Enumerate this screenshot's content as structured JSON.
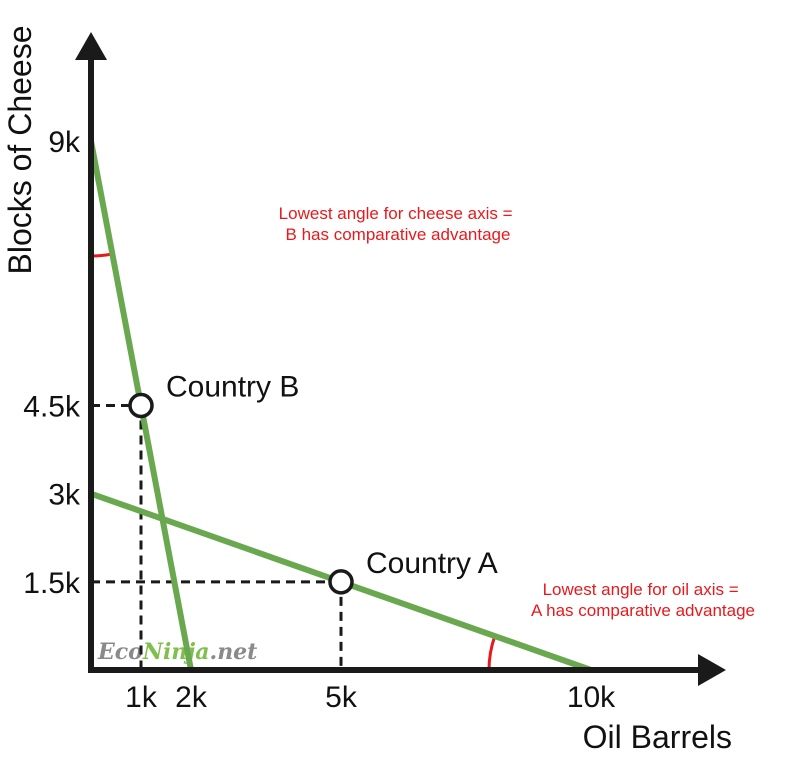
{
  "chart_data": {
    "type": "line",
    "xlabel": "Oil Barrels",
    "ylabel": "Blocks of Cheese",
    "xlim": [
      0,
      10500
    ],
    "ylim": [
      0,
      10000
    ],
    "x_ticks": [
      {
        "value": 1000,
        "label": "1k"
      },
      {
        "value": 2000,
        "label": "2k"
      },
      {
        "value": 5000,
        "label": "5k"
      },
      {
        "value": 10000,
        "label": "10k"
      }
    ],
    "y_ticks": [
      {
        "value": 9000,
        "label": "9k"
      },
      {
        "value": 4500,
        "label": "4.5k"
      },
      {
        "value": 3000,
        "label": "3k"
      },
      {
        "value": 1500,
        "label": "1.5k"
      }
    ],
    "series": [
      {
        "x": [
          0,
          2000
        ],
        "y": [
          9000,
          0
        ],
        "color": "#6aa84f"
      },
      {
        "x": [
          0,
          10000
        ],
        "y": [
          3000,
          0
        ],
        "color": "#6aa84f"
      }
    ],
    "points": [
      {
        "label": "Country B",
        "x": 1000,
        "y": 4500
      },
      {
        "label": "Country A",
        "x": 5000,
        "y": 1500
      }
    ],
    "annotations": [
      {
        "lines": [
          "Lowest angle for cheese axis =",
          "B has comparative advantage"
        ],
        "color": "#e8191c"
      },
      {
        "lines": [
          "Lowest angle for oil axis =",
          "A has comparative advantage"
        ],
        "color": "#e8191c"
      }
    ],
    "watermark": {
      "part1": "Eco",
      "part2": "Ninja",
      "part3": ".net"
    },
    "colors": {
      "axis": "#1a1a1a",
      "line": "#6aa84f",
      "angle": "#e8191c",
      "text": "#111111"
    }
  }
}
